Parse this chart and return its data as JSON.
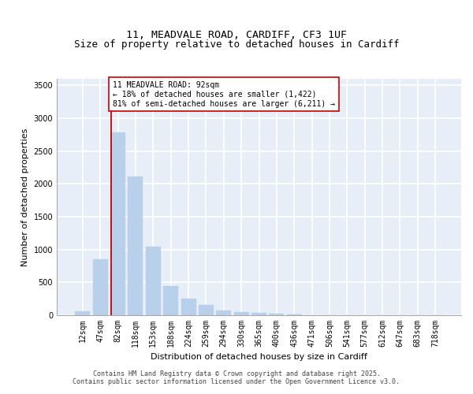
{
  "title_line1": "11, MEADVALE ROAD, CARDIFF, CF3 1UF",
  "title_line2": "Size of property relative to detached houses in Cardiff",
  "xlabel": "Distribution of detached houses by size in Cardiff",
  "ylabel": "Number of detached properties",
  "bar_categories": [
    "12sqm",
    "47sqm",
    "82sqm",
    "118sqm",
    "153sqm",
    "188sqm",
    "224sqm",
    "259sqm",
    "294sqm",
    "330sqm",
    "365sqm",
    "400sqm",
    "436sqm",
    "471sqm",
    "506sqm",
    "541sqm",
    "577sqm",
    "612sqm",
    "647sqm",
    "683sqm",
    "718sqm"
  ],
  "bar_values": [
    55,
    850,
    2780,
    2110,
    1040,
    450,
    250,
    160,
    70,
    50,
    35,
    20,
    10,
    5,
    2,
    1,
    1,
    0,
    0,
    0,
    0
  ],
  "bar_color": "#b8d0ea",
  "bar_edgecolor": "#b8d0ea",
  "vline_color": "#cc0000",
  "vline_x_index": 1.6,
  "annotation_text": "11 MEADVALE ROAD: 92sqm\n← 18% of detached houses are smaller (1,422)\n81% of semi-detached houses are larger (6,211) →",
  "annotation_box_edgecolor": "#cc0000",
  "annotation_box_facecolor": "white",
  "ylim": [
    0,
    3600
  ],
  "yticks": [
    0,
    500,
    1000,
    1500,
    2000,
    2500,
    3000,
    3500
  ],
  "background_color": "#e8eef8",
  "grid_color": "white",
  "footer_line1": "Contains HM Land Registry data © Crown copyright and database right 2025.",
  "footer_line2": "Contains public sector information licensed under the Open Government Licence v3.0.",
  "title_fontsize": 9.5,
  "axis_label_fontsize": 8,
  "tick_fontsize": 7,
  "annotation_fontsize": 7,
  "ylabel_fontsize": 8
}
